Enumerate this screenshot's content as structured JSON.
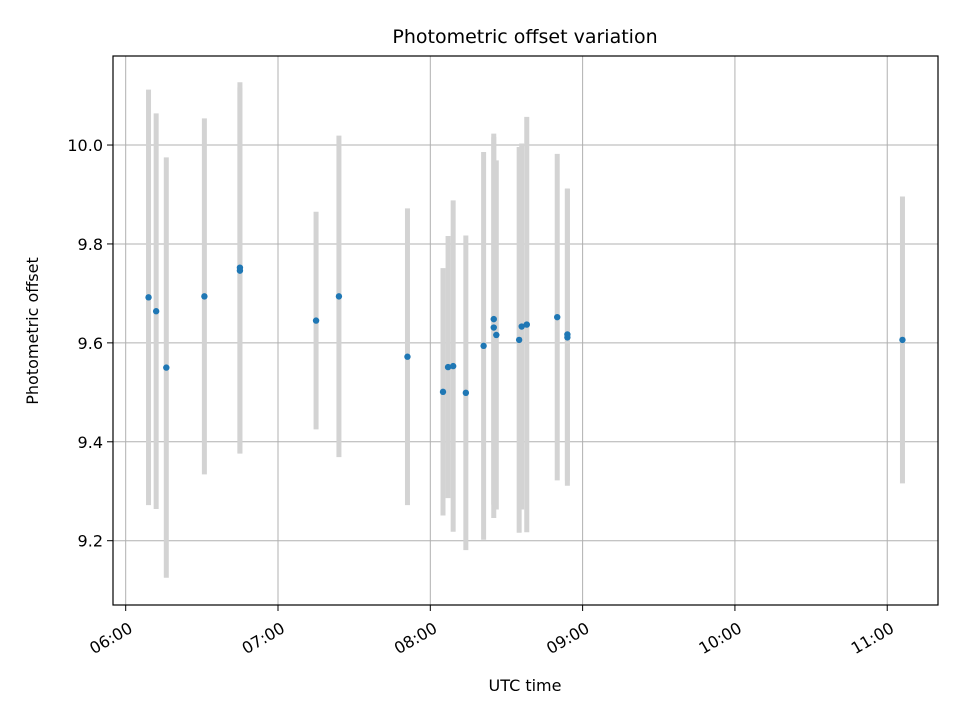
{
  "chart_data": {
    "type": "scatter",
    "title": "Photometric offset variation",
    "xlabel": "UTC time",
    "ylabel": "Photometric offset",
    "x_type": "time",
    "xlim": [
      "05:55",
      "11:20"
    ],
    "ylim": [
      9.07,
      10.18
    ],
    "x_ticks": [
      "06:00",
      "07:00",
      "08:00",
      "09:00",
      "10:00",
      "11:00"
    ],
    "y_ticks": [
      9.2,
      9.4,
      9.6,
      9.8,
      10.0
    ],
    "y_tick_labels": [
      "9.2",
      "9.4",
      "9.6",
      "9.8",
      "10.0"
    ],
    "grid": true,
    "marker_color": "#1f77b4",
    "errorbar_color": "#d3d3d3",
    "points": [
      {
        "x": "06:09",
        "y": 9.692,
        "yerr": 0.42
      },
      {
        "x": "06:12",
        "y": 9.664,
        "yerr": 0.4
      },
      {
        "x": "06:16",
        "y": 9.55,
        "yerr": 0.425
      },
      {
        "x": "06:31",
        "y": 9.694,
        "yerr": 0.36
      },
      {
        "x": "06:45",
        "y": 9.746,
        "yerr": 0.37
      },
      {
        "x": "06:45",
        "y": 9.752,
        "yerr": 0.375
      },
      {
        "x": "07:15",
        "y": 9.645,
        "yerr": 0.22
      },
      {
        "x": "07:24",
        "y": 9.694,
        "yerr": 0.325
      },
      {
        "x": "07:51",
        "y": 9.572,
        "yerr": 0.3
      },
      {
        "x": "08:05",
        "y": 9.501,
        "yerr": 0.25
      },
      {
        "x": "08:07",
        "y": 9.551,
        "yerr": 0.265
      },
      {
        "x": "08:09",
        "y": 9.553,
        "yerr": 0.335
      },
      {
        "x": "08:14",
        "y": 9.499,
        "yerr": 0.318
      },
      {
        "x": "08:21",
        "y": 9.594,
        "yerr": 0.392
      },
      {
        "x": "08:25",
        "y": 9.631,
        "yerr": 0.385
      },
      {
        "x": "08:25",
        "y": 9.648,
        "yerr": 0.375
      },
      {
        "x": "08:26",
        "y": 9.616,
        "yerr": 0.353
      },
      {
        "x": "08:35",
        "y": 9.606,
        "yerr": 0.39
      },
      {
        "x": "08:36",
        "y": 9.633,
        "yerr": 0.37
      },
      {
        "x": "08:38",
        "y": 9.637,
        "yerr": 0.42
      },
      {
        "x": "08:50",
        "y": 9.652,
        "yerr": 0.33
      },
      {
        "x": "08:54",
        "y": 9.617,
        "yerr": 0.295
      },
      {
        "x": "08:54",
        "y": 9.611,
        "yerr": 0.3
      },
      {
        "x": "11:06",
        "y": 9.606,
        "yerr": 0.29
      }
    ]
  }
}
